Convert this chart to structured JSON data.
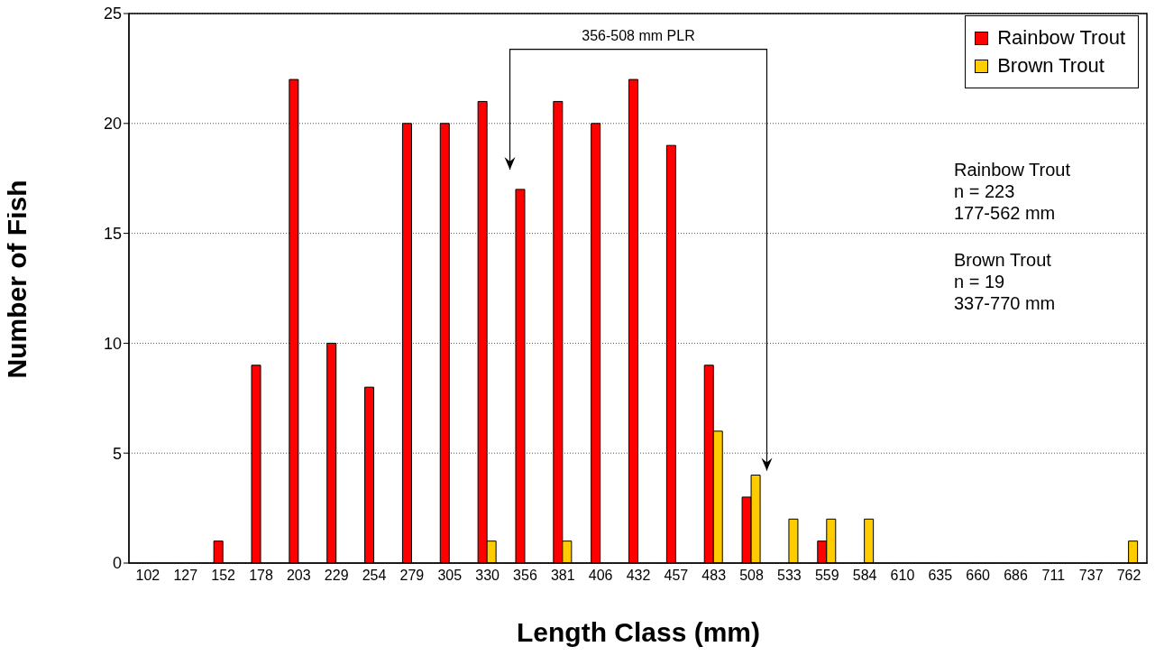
{
  "chart_data": {
    "type": "bar",
    "xlabel": "Length Class (mm)",
    "ylabel": "Number of Fish",
    "categories": [
      "102",
      "127",
      "152",
      "178",
      "203",
      "229",
      "254",
      "279",
      "305",
      "330",
      "356",
      "381",
      "406",
      "432",
      "457",
      "483",
      "508",
      "533",
      "559",
      "584",
      "610",
      "635",
      "660",
      "686",
      "711",
      "737",
      "762"
    ],
    "series": [
      {
        "name": "Rainbow Trout",
        "color": "#ff0000",
        "values": [
          0,
          0,
          1,
          9,
          22,
          10,
          8,
          20,
          20,
          21,
          17,
          21,
          20,
          22,
          19,
          9,
          3,
          0,
          1,
          0,
          0,
          0,
          0,
          0,
          0,
          0,
          0
        ]
      },
      {
        "name": "Brown Trout",
        "color": "#ffcc00",
        "values": [
          0,
          0,
          0,
          0,
          0,
          0,
          0,
          0,
          0,
          1,
          0,
          1,
          0,
          0,
          0,
          6,
          4,
          2,
          2,
          2,
          0,
          0,
          0,
          0,
          0,
          0,
          1
        ]
      }
    ],
    "ylim": [
      0,
      25
    ],
    "yticks": [
      0,
      5,
      10,
      15,
      20,
      25
    ],
    "grid": "y",
    "legend": "top right",
    "annotations": [
      "356-508 mm PLR",
      "Rainbow Trout\nn = 223\n177-562 mm",
      "Brown Trout\nn = 19\n337-770 mm"
    ]
  }
}
